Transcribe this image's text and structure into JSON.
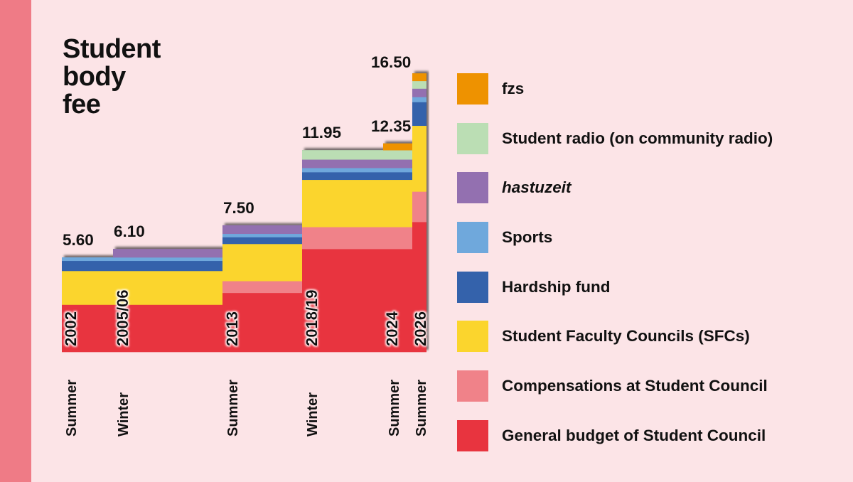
{
  "title_lines": [
    "Student",
    "body",
    "fee"
  ],
  "chart_data": {
    "type": "bar",
    "subtype": "stacked-step",
    "title": "Student body fee",
    "xlabel": "",
    "ylabel": "",
    "ylim": [
      0,
      16.5
    ],
    "grid": false,
    "legend_position": "right",
    "categories": [
      {
        "year": "2002",
        "semester": "Summer",
        "total_label": "5.60"
      },
      {
        "year": "2005/06",
        "semester": "Winter",
        "total_label": "6.10"
      },
      {
        "year": "2013",
        "semester": "Summer",
        "total_label": "7.50"
      },
      {
        "year": "2018/19",
        "semester": "Winter",
        "total_label": "11.95"
      },
      {
        "year": "2024",
        "semester": "Summer",
        "total_label": "12.35"
      },
      {
        "year": "2026",
        "semester": "Summer",
        "total_label": "16.50"
      }
    ],
    "totals": [
      5.6,
      6.1,
      7.5,
      11.95,
      12.35,
      16.5
    ],
    "series": [
      {
        "name": "General budget of Student Council",
        "color": "#e8343f",
        "values": [
          2.8,
          2.8,
          3.5,
          6.1,
          6.1,
          7.7
        ]
      },
      {
        "name": "Compensations at Student Council",
        "color": "#f08289",
        "values": [
          0.0,
          0.0,
          0.7,
          1.3,
          1.3,
          1.8
        ]
      },
      {
        "name": "Student Faculty Councils (SFCs)",
        "color": "#fbd52d",
        "values": [
          2.0,
          2.0,
          2.2,
          2.8,
          2.8,
          3.9
        ]
      },
      {
        "name": "Hardship fund",
        "color": "#3462ab",
        "values": [
          0.6,
          0.6,
          0.4,
          0.45,
          0.45,
          1.4
        ]
      },
      {
        "name": "Sports",
        "color": "#6fa8dc",
        "values": [
          0.2,
          0.2,
          0.2,
          0.25,
          0.25,
          0.3
        ]
      },
      {
        "name": "hastuzeit",
        "color": "#9370b0",
        "italic": true,
        "values": [
          0.0,
          0.5,
          0.5,
          0.5,
          0.5,
          0.5
        ]
      },
      {
        "name": "Student radio (on community radio)",
        "color": "#bbdeb4",
        "values": [
          0.0,
          0.0,
          0.0,
          0.55,
          0.55,
          0.45
        ]
      },
      {
        "name": "fzs",
        "color": "#ee9200",
        "values": [
          0.0,
          0.0,
          0.0,
          0.0,
          0.4,
          0.45
        ]
      }
    ]
  },
  "legend": [
    {
      "label": "fzs",
      "color": "#ee9200"
    },
    {
      "label": "Student radio (on community radio)",
      "color": "#bbdeb4"
    },
    {
      "label": "hastuzeit",
      "color": "#9370b0",
      "italic": true
    },
    {
      "label": "Sports",
      "color": "#6fa8dc"
    },
    {
      "label": "Hardship fund",
      "color": "#3462ab"
    },
    {
      "label": "Student Faculty Councils (SFCs)",
      "color": "#fbd52d"
    },
    {
      "label": "Compensations at Student Council",
      "color": "#f08289"
    },
    {
      "label": "General budget of Student Council",
      "color": "#e8343f"
    }
  ],
  "colors": {
    "background": "#fce4e7",
    "side_strip": "#ef7b86",
    "text": "#111111"
  }
}
